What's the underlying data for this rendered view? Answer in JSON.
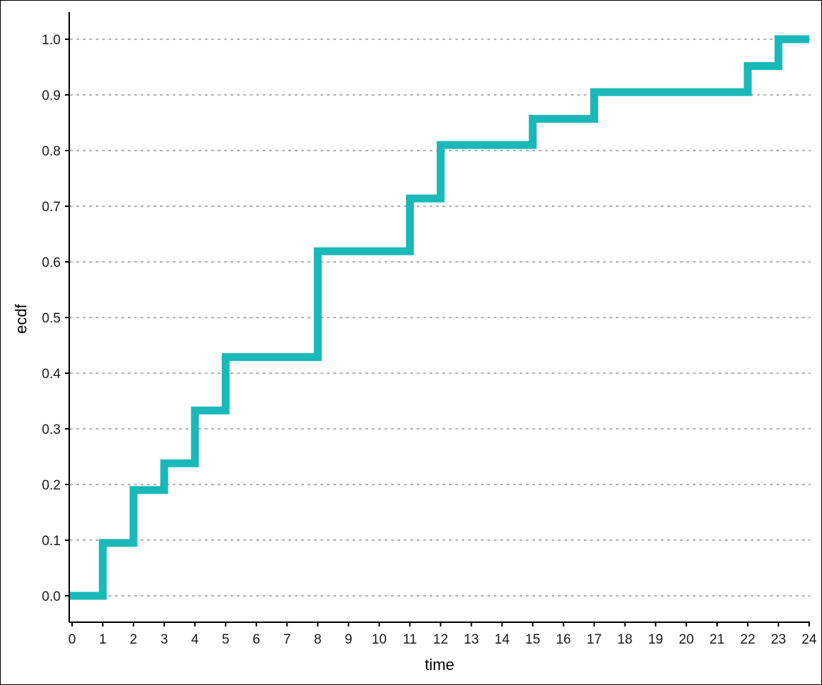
{
  "chart_data": {
    "type": "line",
    "step": true,
    "xlabel": "time",
    "ylabel": "ecdf",
    "xlim": [
      0,
      24
    ],
    "ylim": [
      0,
      1
    ],
    "x_ticks": [
      0,
      1,
      2,
      3,
      4,
      5,
      6,
      7,
      8,
      9,
      10,
      11,
      12,
      13,
      14,
      15,
      16,
      17,
      18,
      19,
      20,
      21,
      22,
      23,
      24
    ],
    "y_ticks": [
      0.0,
      0.1,
      0.2,
      0.3,
      0.4,
      0.5,
      0.6,
      0.7,
      0.8,
      0.9,
      1.0
    ],
    "y_tick_labels": [
      "0.0",
      "0.1",
      "0.2",
      "0.3",
      "0.4",
      "0.5",
      "0.6",
      "0.7",
      "0.8",
      "0.9",
      "1.0"
    ],
    "grid": {
      "horizontal": true,
      "vertical": false,
      "style": "dotted"
    },
    "series": [
      {
        "color": "#1ab8b8",
        "x": [
          0,
          1,
          2,
          3,
          4,
          5,
          8,
          11,
          12,
          15,
          17,
          22,
          23,
          24
        ],
        "y": [
          0.0,
          0.095,
          0.19,
          0.238,
          0.333,
          0.429,
          0.619,
          0.714,
          0.81,
          0.857,
          0.905,
          0.952,
          1.0,
          1.0
        ]
      }
    ]
  }
}
